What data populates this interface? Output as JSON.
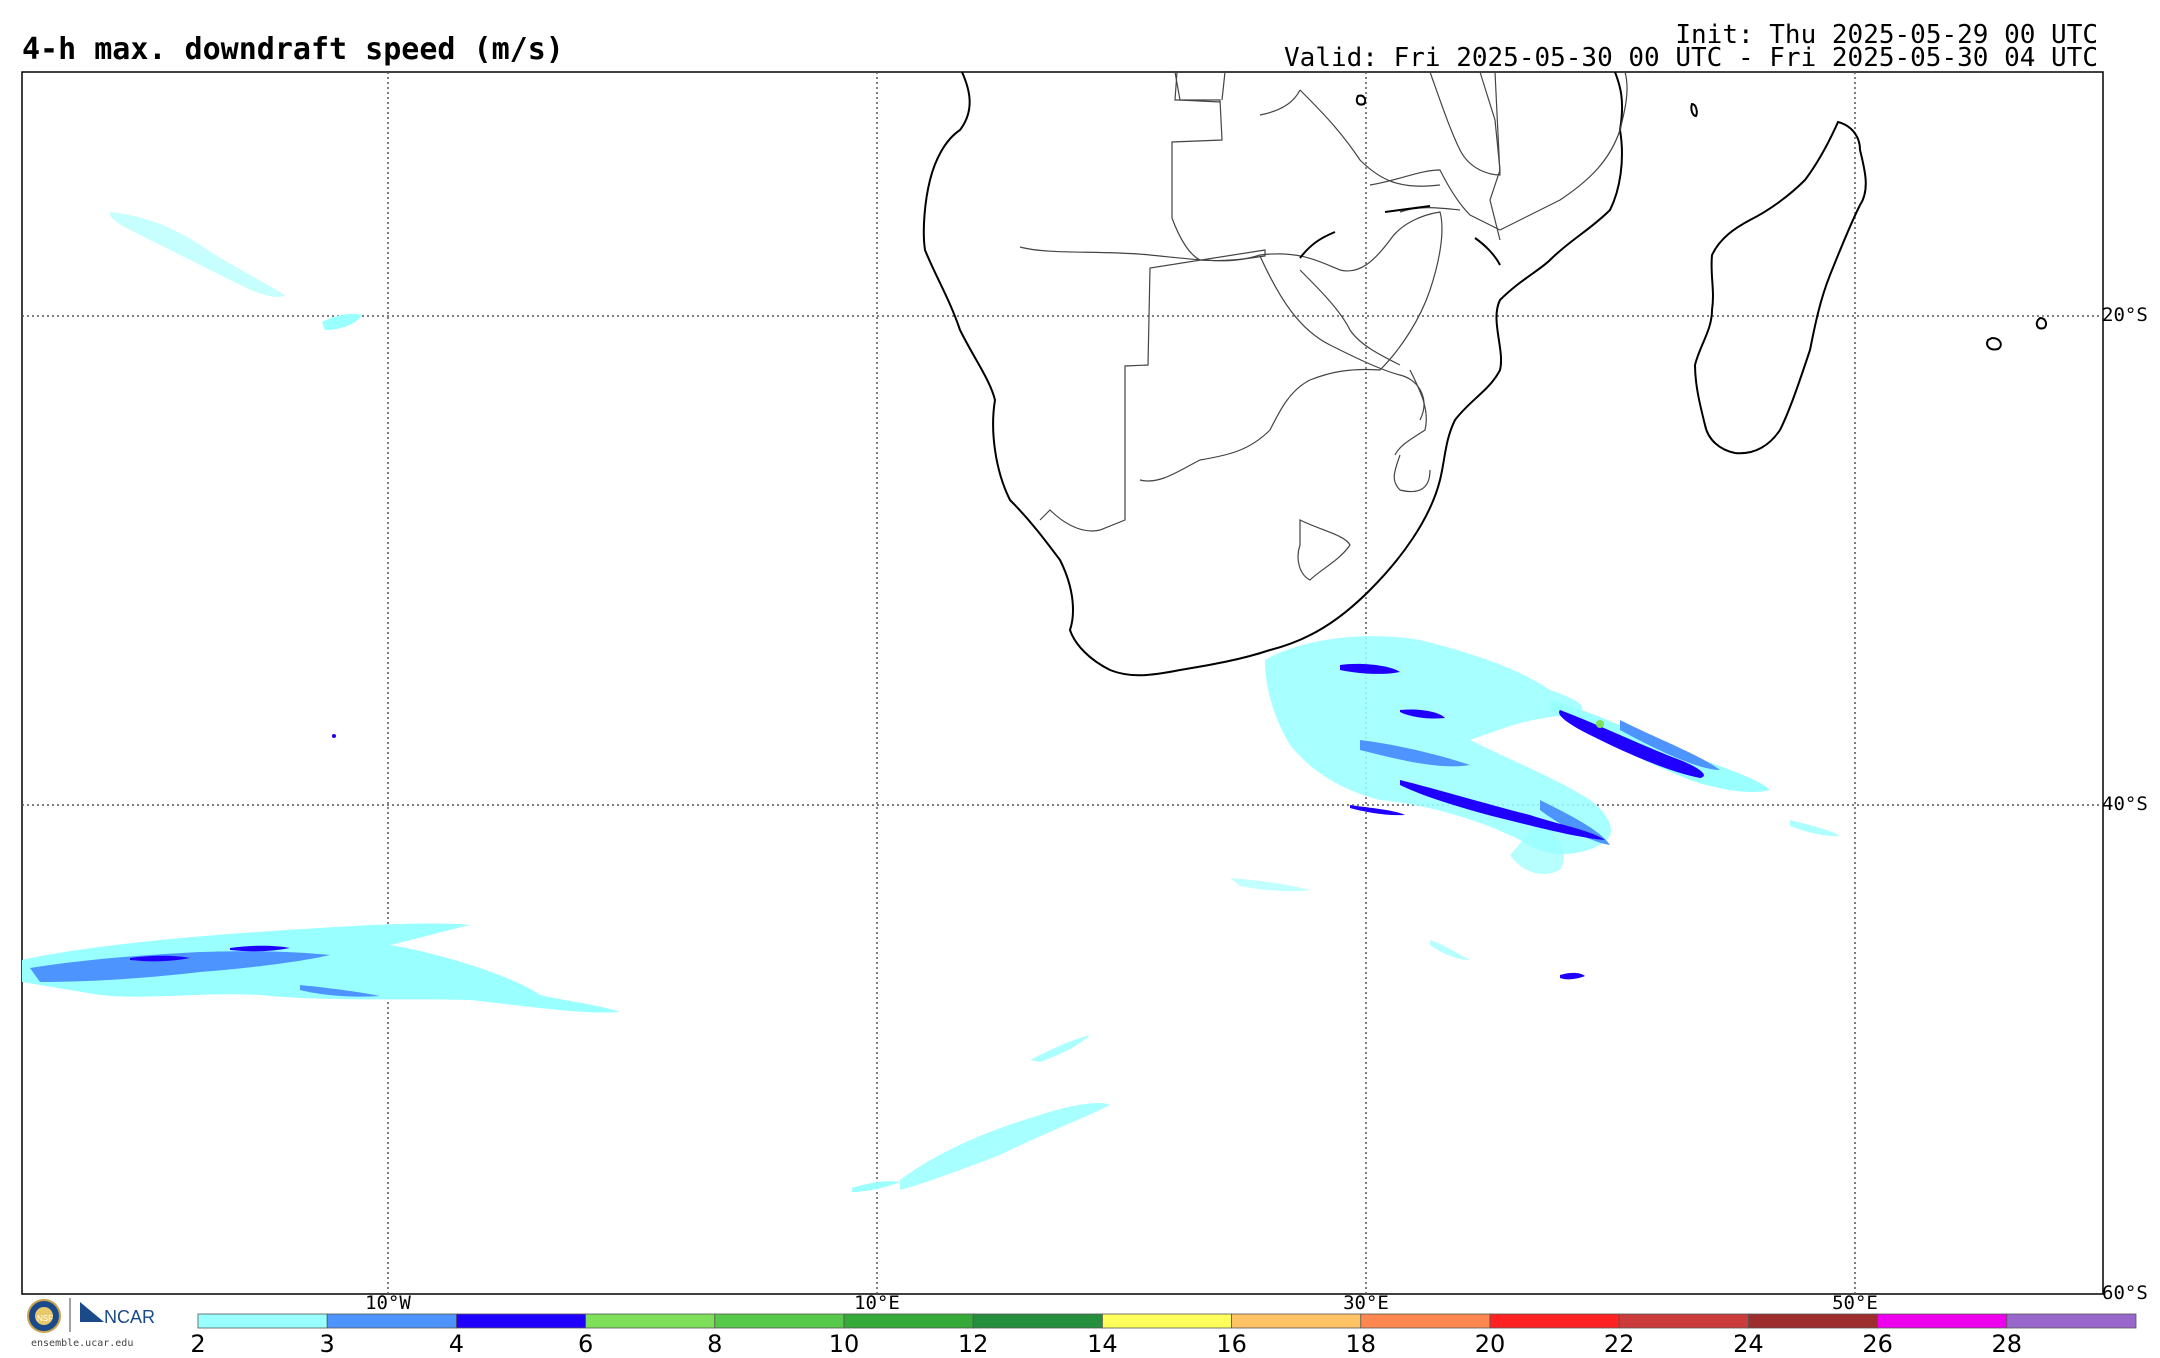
{
  "title": "4-h max. downdraft speed (m/s)",
  "init_text": "Init: Thu 2025-05-29 00 UTC",
  "valid_text": "Valid: Fri 2025-05-30 00 UTC - Fri 2025-05-30 04 UTC",
  "map": {
    "lon_labels": [
      "10°W",
      "10°E",
      "30°E",
      "50°E"
    ],
    "lat_labels": [
      "20°S",
      "40°S",
      "60°S"
    ]
  },
  "colorbar": {
    "ticks": [
      "2",
      "3",
      "4",
      "6",
      "8",
      "10",
      "12",
      "14",
      "16",
      "18",
      "20",
      "22",
      "24",
      "26",
      "28"
    ],
    "colors": [
      "#99ffff",
      "#4d94ff",
      "#1f00ff",
      "#7ee05a",
      "#56c84a",
      "#36aa38",
      "#268f3e",
      "#ffff5c",
      "#ffc366",
      "#ff8850",
      "#ff2222",
      "#cc3b3b",
      "#9e2d2d",
      "#ee00ee",
      "#9966cc"
    ]
  },
  "logo": {
    "org1": "NSF",
    "org2": "NCAR",
    "url": "ensemble.ucar.edu"
  }
}
